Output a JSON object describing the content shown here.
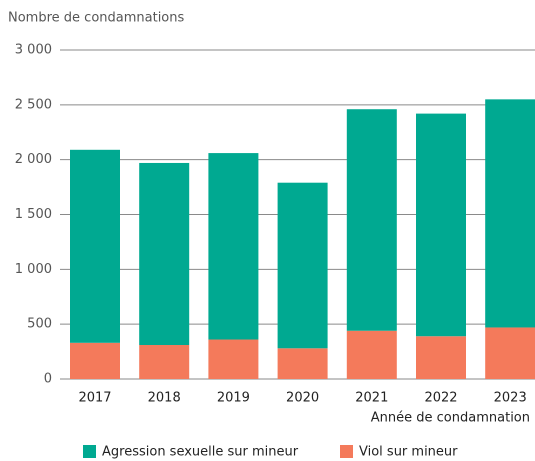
{
  "chart_data": {
    "type": "stacked_bar",
    "y_axis_title": "Nombre de condamnations",
    "x_axis_title": "Année de condamnation",
    "categories": [
      "2017",
      "2018",
      "2019",
      "2020",
      "2021",
      "2022",
      "2023"
    ],
    "series": [
      {
        "name": "Agression sexuelle sur mineur",
        "color": "#00a991",
        "values": [
          1760,
          1660,
          1700,
          1510,
          2020,
          2030,
          2080
        ]
      },
      {
        "name": "Viol sur mineur",
        "color": "#f47a5b",
        "values": [
          330,
          310,
          360,
          280,
          440,
          390,
          470
        ]
      }
    ],
    "ylim": [
      0,
      3000
    ],
    "yticks": [
      0,
      500,
      {
        "value": 1000,
        "label": "1 000"
      },
      {
        "value": 1500,
        "label": "1 500"
      },
      {
        "value": 2000,
        "label": "2 000"
      },
      {
        "value": 2500,
        "label": "2 500"
      },
      {
        "value": 3000,
        "label": "3 000"
      }
    ],
    "grid": true
  }
}
